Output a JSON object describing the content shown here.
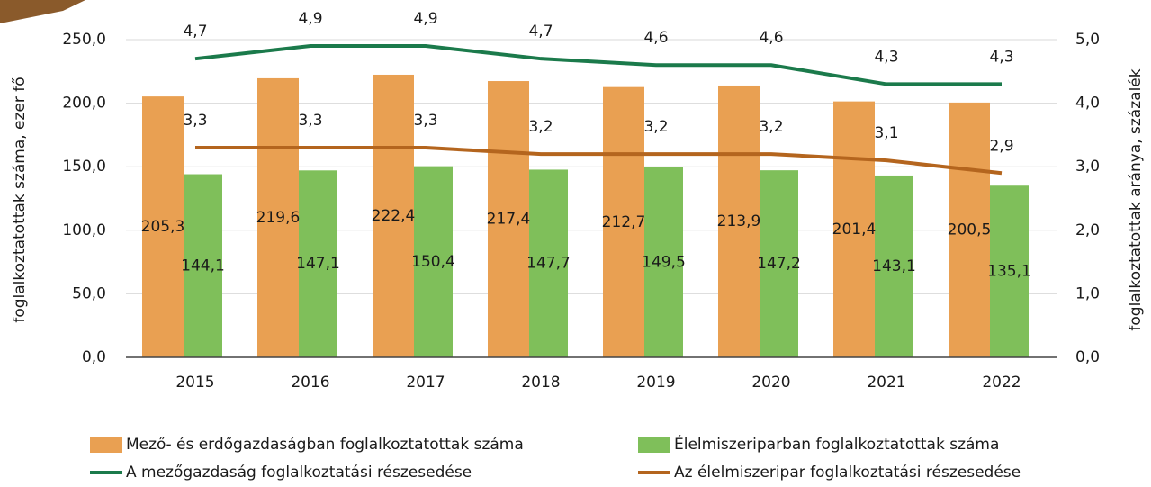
{
  "chart_data": {
    "type": "bar_line",
    "categories": [
      "2015",
      "2016",
      "2017",
      "2018",
      "2019",
      "2020",
      "2021",
      "2022"
    ],
    "ylabel": "foglalkoztatottak száma, ezer fő",
    "y2label": "foglalkoztatottak aránya, százalék",
    "ylim": [
      0,
      250
    ],
    "yticks": [
      {
        "value": 0,
        "label": "0,0"
      },
      {
        "value": 50,
        "label": "50,0"
      },
      {
        "value": 100,
        "label": "100,0"
      },
      {
        "value": 150,
        "label": "150,0"
      },
      {
        "value": 200,
        "label": "200,0"
      },
      {
        "value": 250,
        "label": "250,0"
      }
    ],
    "y2lim": [
      0,
      5
    ],
    "y2ticks": [
      {
        "value": 0,
        "label": "0,0"
      },
      {
        "value": 1,
        "label": "1,0"
      },
      {
        "value": 2,
        "label": "2,0"
      },
      {
        "value": 3,
        "label": "3,0"
      },
      {
        "value": 4,
        "label": "4,0"
      },
      {
        "value": 5,
        "label": "5,0"
      }
    ],
    "grid": true,
    "series": [
      {
        "name": "Mező- és erdőgazdaságban foglalkoztatottak száma",
        "kind": "bar",
        "color": "#e9a052",
        "values": [
          205.3,
          219.6,
          222.4,
          217.4,
          212.7,
          213.9,
          201.4,
          200.5
        ],
        "value_labels": [
          "205,3",
          "219,6",
          "222,4",
          "217,4",
          "212,7",
          "213,9",
          "201,4",
          "200,5"
        ]
      },
      {
        "name": "Élelmiszeriparban foglalkoztatottak száma",
        "kind": "bar",
        "color": "#7fbf5a",
        "values": [
          144.1,
          147.1,
          150.4,
          147.7,
          149.5,
          147.2,
          143.1,
          135.1
        ],
        "value_labels": [
          "144,1",
          "147,1",
          "150,4",
          "147,7",
          "149,5",
          "147,2",
          "143,1",
          "135,1"
        ]
      },
      {
        "name": "A mezőgazdaság foglalkoztatási részesedése",
        "kind": "line",
        "axis": "y2",
        "color": "#1b7a4b",
        "values": [
          4.7,
          4.9,
          4.9,
          4.7,
          4.6,
          4.6,
          4.3,
          4.3
        ],
        "value_labels": [
          "4,7",
          "4,9",
          "4,9",
          "4,7",
          "4,6",
          "4,6",
          "4,3",
          "4,3"
        ]
      },
      {
        "name": "Az élelmiszeripar foglalkoztatási részesedése",
        "kind": "line",
        "axis": "y2",
        "color": "#b4651e",
        "values": [
          3.3,
          3.3,
          3.3,
          3.2,
          3.2,
          3.2,
          3.1,
          2.9
        ],
        "value_labels": [
          "3,3",
          "3,3",
          "3,3",
          "3,2",
          "3,2",
          "3,2",
          "3,1",
          "2,9"
        ]
      }
    ]
  }
}
